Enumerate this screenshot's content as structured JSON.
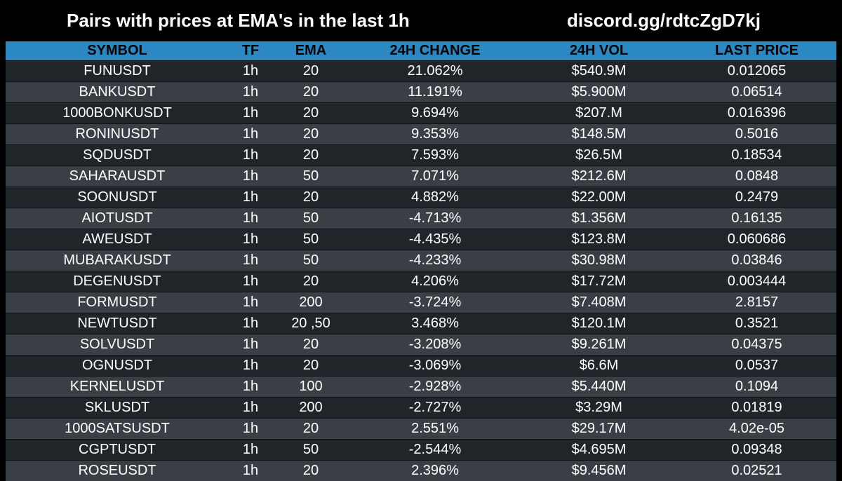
{
  "header": {
    "title": "Pairs with prices at EMA's in the last 1h",
    "link": "discord.gg/rdtcZgD7kj"
  },
  "colors": {
    "background": "#000000",
    "header_row": "#2b88c3",
    "row_dark": "#202529",
    "row_light": "#393f45",
    "text": "#ffffff"
  },
  "table": {
    "columns": [
      "SYMBOL",
      "TF",
      "EMA",
      "24H CHANGE",
      "24H VOL",
      "LAST PRICE"
    ],
    "rows": [
      [
        "FUNUSDT",
        "1h",
        "20",
        "21.062%",
        "$540.9M",
        "0.012065"
      ],
      [
        "BANKUSDT",
        "1h",
        "20",
        "11.191%",
        "$5.900M",
        "0.06514"
      ],
      [
        "1000BONKUSDT",
        "1h",
        "20",
        "9.694%",
        "$207.M",
        "0.016396"
      ],
      [
        "RONINUSDT",
        "1h",
        "20",
        "9.353%",
        "$148.5M",
        "0.5016"
      ],
      [
        "SQDUSDT",
        "1h",
        "20",
        "7.593%",
        "$26.5M",
        "0.18534"
      ],
      [
        "SAHARAUSDT",
        "1h",
        "50",
        "7.071%",
        "$212.6M",
        "0.0848"
      ],
      [
        "SOONUSDT",
        "1h",
        "20",
        "4.882%",
        "$22.00M",
        "0.2479"
      ],
      [
        "AIOTUSDT",
        "1h",
        "50",
        "-4.713%",
        "$1.356M",
        "0.16135"
      ],
      [
        "AWEUSDT",
        "1h",
        "50",
        "-4.435%",
        "$123.8M",
        "0.060686"
      ],
      [
        "MUBARAKUSDT",
        "1h",
        "50",
        "-4.233%",
        "$30.98M",
        "0.03846"
      ],
      [
        "DEGENUSDT",
        "1h",
        "20",
        "4.206%",
        "$17.72M",
        "0.003444"
      ],
      [
        "FORMUSDT",
        "1h",
        "200",
        "-3.724%",
        "$7.408M",
        "2.8157"
      ],
      [
        "NEWTUSDT",
        "1h",
        "20 ,50",
        "3.468%",
        "$120.1M",
        "0.3521"
      ],
      [
        "SOLVUSDT",
        "1h",
        "20",
        "-3.208%",
        "$9.261M",
        "0.04375"
      ],
      [
        "OGNUSDT",
        "1h",
        "20",
        "-3.069%",
        "$6.6M",
        "0.0537"
      ],
      [
        "KERNELUSDT",
        "1h",
        "100",
        "-2.928%",
        "$5.440M",
        "0.1094"
      ],
      [
        "SKLUSDT",
        "1h",
        "200",
        "-2.727%",
        "$3.29M",
        "0.01819"
      ],
      [
        "1000SATSUSDT",
        "1h",
        "20",
        "2.551%",
        "$29.17M",
        "4.02e-05"
      ],
      [
        "CGPTUSDT",
        "1h",
        "50",
        "-2.544%",
        "$4.695M",
        "0.09348"
      ],
      [
        "ROSEUSDT",
        "1h",
        "20",
        "2.396%",
        "$9.456M",
        "0.02521"
      ]
    ]
  }
}
